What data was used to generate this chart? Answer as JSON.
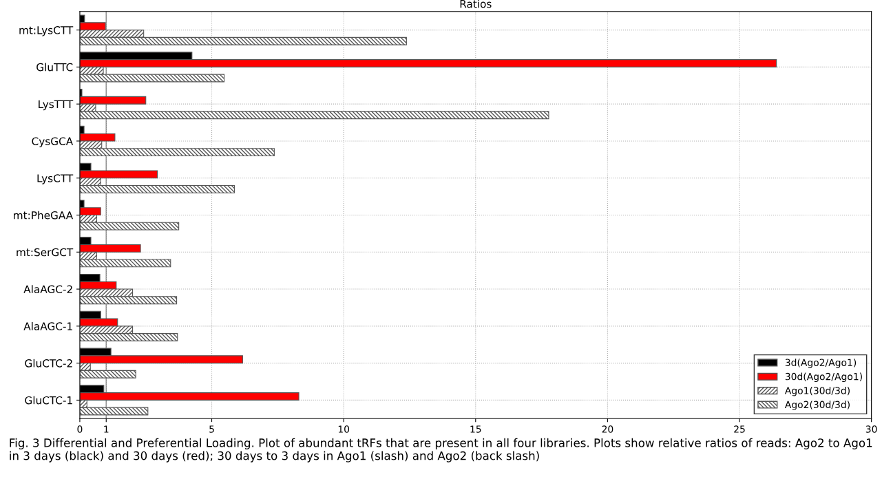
{
  "chart_data": {
    "type": "bar",
    "orientation": "horizontal",
    "title": "Ratios",
    "categories": [
      "mt:LysCTT",
      "GluTTC",
      "LysTTT",
      "CysGCA",
      "LysCTT",
      "mt:PheGAA",
      "mt:SerGCT",
      "AlaAGC-2",
      "AlaAGC-1",
      "GluCTC-2",
      "GluCTC-1"
    ],
    "series": [
      {
        "name": "3d(Ago2/Ago1)",
        "color": "#000000",
        "values": [
          0.18,
          4.25,
          0.08,
          0.16,
          0.42,
          0.16,
          0.42,
          0.76,
          0.79,
          1.18,
          0.91
        ]
      },
      {
        "name": "30d(Ago2/Ago1)",
        "color": "#ff0000",
        "values": [
          0.97,
          26.4,
          2.5,
          1.33,
          2.94,
          0.79,
          2.3,
          1.38,
          1.43,
          6.17,
          8.3
        ]
      },
      {
        "name": "Ago1(30d/3d)",
        "color": "#555555",
        "values": [
          2.42,
          0.89,
          0.6,
          0.83,
          0.79,
          0.64,
          0.64,
          2.0,
          2.0,
          0.4,
          0.27
        ]
      },
      {
        "name": "Ago2(30d/3d)",
        "color": "#555555",
        "values": [
          12.38,
          5.47,
          17.77,
          7.37,
          5.86,
          3.75,
          3.44,
          3.67,
          3.7,
          2.12,
          2.58
        ]
      }
    ],
    "xlim": [
      0,
      30
    ],
    "xticks": [
      0,
      1,
      5,
      10,
      15,
      20,
      25,
      30
    ],
    "ref_lines": [
      {
        "axis": "x",
        "value": 1,
        "color": "#808080",
        "line_style": "solid"
      }
    ],
    "grid": true,
    "legend": "bottom right",
    "annotations": [
      "Fig. 3 Differential and Preferential Loading. Plot of abundant tRFs that are present in all four libraries. Plots show relative ratios of reads: Ago2 to Ago1 in 3 days (black) and 30 days (red); 30 days to 3 days in Ago1 (slash) and Ago2 (back slash)"
    ]
  }
}
